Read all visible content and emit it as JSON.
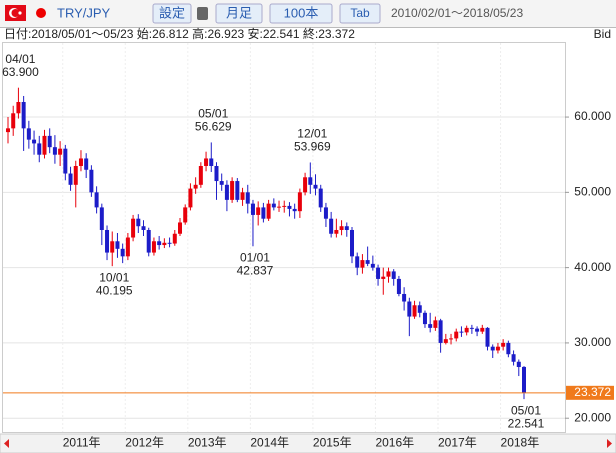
{
  "toolbar": {
    "pair": "TRY/JPY",
    "settings": "設定",
    "period": "月足",
    "count": "100本",
    "tab": "Tab",
    "range": "2010/02/01～2018/05/23"
  },
  "chart_data": {
    "type": "candlestick",
    "info": "日付:2018/05/01～05/23 始:26.812 高:26.923 安:22.541 終:23.372",
    "price_type": "Bid",
    "up_color": "#e8000b",
    "down_color": "#1c1cc8",
    "categories": [
      null,
      null,
      null,
      null,
      null,
      null,
      null,
      null,
      null,
      null,
      null,
      "2011年",
      null,
      null,
      null,
      null,
      null,
      null,
      null,
      null,
      null,
      null,
      null,
      "2012年",
      null,
      null,
      null,
      null,
      null,
      null,
      null,
      null,
      null,
      null,
      null,
      "2013年",
      null,
      null,
      null,
      null,
      null,
      null,
      null,
      null,
      null,
      null,
      null,
      "2014年",
      null,
      null,
      null,
      null,
      null,
      null,
      null,
      null,
      null,
      null,
      null,
      "2015年",
      null,
      null,
      null,
      null,
      null,
      null,
      null,
      null,
      null,
      null,
      null,
      "2016年",
      null,
      null,
      null,
      null,
      null,
      null,
      null,
      null,
      null,
      null,
      null,
      "2017年",
      null,
      null,
      null,
      null,
      null,
      null,
      null,
      null,
      null,
      null,
      null,
      "2018年",
      null,
      null,
      null,
      null
    ],
    "open": [
      58.0,
      58.5,
      60.5,
      62.0,
      58.5,
      57.0,
      56.5,
      55.0,
      57.5,
      56.0,
      55.0,
      55.8,
      52.5,
      51.0,
      53.5,
      54.5,
      53.0,
      50.0,
      48.0,
      45.0,
      42.0,
      43.5,
      42.5,
      41.5,
      44.0,
      46.5,
      45.5,
      45.0,
      42.0,
      43.5,
      43.0,
      43.3,
      43.2,
      44.5,
      46.0,
      48.0,
      50.5,
      51.0,
      53.5,
      54.5,
      53.5,
      51.5,
      51.0,
      49.0,
      51.5,
      49.0,
      50.0,
      48.5,
      47.0,
      48.0,
      46.5,
      48.5,
      48.0,
      48.1,
      48.2,
      47.8,
      47.5,
      50.0,
      52.0,
      51.0,
      50.5,
      48.0,
      46.5,
      44.5,
      45.0,
      45.5,
      45.0,
      41.5,
      40.0,
      41.0,
      40.5,
      40.0,
      38.5,
      38.8,
      39.5,
      38.5,
      36.5,
      35.5,
      33.5,
      35.0,
      34.0,
      32.5,
      32.0,
      33.0,
      30.0,
      30.5,
      30.6,
      31.5,
      31.4,
      32.0,
      31.9,
      31.5,
      32.0,
      29.5,
      29.0,
      29.5,
      30.0,
      28.5,
      27.5,
      26.812
    ],
    "high": [
      60.0,
      61.5,
      63.9,
      62.8,
      59.5,
      58.2,
      57.5,
      58.3,
      58.5,
      57.6,
      56.8,
      56.3,
      53.4,
      54.2,
      55.6,
      55.2,
      53.6,
      50.8,
      48.5,
      45.6,
      44.8,
      44.6,
      43.2,
      44.6,
      47.0,
      47.1,
      46.3,
      45.3,
      44.0,
      44.2,
      43.9,
      44.0,
      45.0,
      46.6,
      48.4,
      51.2,
      52.0,
      54.0,
      55.4,
      56.629,
      54.0,
      52.5,
      51.6,
      52.0,
      51.9,
      50.6,
      51.0,
      49.0,
      48.8,
      48.6,
      49.0,
      49.2,
      48.9,
      48.9,
      48.7,
      48.5,
      50.5,
      52.6,
      53.969,
      52.4,
      51.0,
      48.6,
      47.4,
      46.5,
      46.3,
      46.0,
      45.4,
      42.0,
      41.8,
      42.8,
      41.6,
      40.4,
      40.0,
      40.0,
      39.8,
      38.9,
      37.4,
      36.0,
      35.6,
      35.5,
      34.3,
      34.0,
      33.5,
      33.2,
      31.2,
      31.2,
      31.9,
      32.2,
      32.3,
      32.4,
      32.2,
      32.4,
      32.1,
      29.8,
      30.0,
      30.5,
      30.3,
      29.0,
      27.8,
      26.923
    ],
    "low": [
      56.5,
      57.5,
      59.8,
      55.5,
      55.8,
      55.0,
      54.0,
      54.5,
      55.2,
      53.8,
      53.5,
      51.6,
      50.2,
      48.0,
      52.8,
      51.9,
      49.4,
      47.2,
      43.0,
      41.0,
      40.195,
      41.3,
      40.6,
      41.0,
      43.5,
      44.6,
      44.2,
      41.5,
      41.6,
      42.4,
      42.6,
      42.7,
      42.9,
      44.2,
      45.7,
      47.6,
      49.8,
      50.6,
      52.8,
      52.7,
      49.0,
      50.2,
      47.5,
      48.6,
      48.7,
      48.2,
      47.2,
      42.837,
      45.6,
      46.0,
      46.2,
      47.6,
      47.4,
      47.3,
      46.8,
      46.5,
      46.6,
      49.6,
      49.8,
      49.6,
      47.4,
      45.4,
      44.0,
      44.0,
      44.3,
      44.1,
      40.6,
      39.0,
      39.2,
      40.2,
      39.6,
      37.6,
      36.4,
      38.0,
      37.6,
      36.2,
      34.3,
      30.9,
      33.2,
      33.4,
      32.0,
      31.4,
      31.6,
      28.7,
      29.8,
      29.8,
      30.2,
      30.8,
      31.0,
      31.2,
      30.9,
      31.2,
      29.0,
      28.0,
      28.6,
      29.0,
      28.1,
      27.0,
      25.6,
      22.541
    ],
    "close": [
      58.5,
      60.5,
      62.0,
      58.5,
      57.0,
      56.5,
      55.0,
      57.5,
      56.0,
      55.0,
      55.8,
      52.5,
      51.0,
      53.5,
      54.5,
      53.0,
      50.0,
      48.0,
      45.0,
      42.0,
      43.5,
      42.5,
      41.5,
      44.0,
      46.5,
      45.5,
      45.0,
      42.0,
      43.5,
      43.0,
      43.3,
      43.2,
      44.5,
      46.0,
      48.0,
      50.5,
      51.0,
      53.5,
      54.5,
      53.5,
      51.5,
      51.0,
      49.0,
      51.5,
      49.0,
      50.0,
      48.5,
      47.0,
      48.0,
      46.5,
      48.5,
      48.0,
      48.1,
      48.2,
      47.8,
      47.5,
      50.0,
      52.0,
      51.0,
      50.5,
      48.0,
      46.5,
      44.5,
      45.0,
      45.5,
      45.0,
      41.5,
      40.0,
      41.0,
      40.5,
      40.0,
      38.5,
      38.8,
      39.5,
      38.5,
      36.5,
      35.5,
      33.5,
      35.0,
      34.0,
      32.5,
      32.0,
      33.0,
      30.0,
      30.5,
      30.6,
      31.5,
      31.4,
      32.0,
      31.9,
      31.5,
      32.0,
      29.5,
      29.0,
      29.5,
      30.0,
      28.5,
      27.5,
      26.8,
      23.372
    ],
    "ylim": [
      18.7,
      70.5
    ],
    "yticks": [
      {
        "value": 20,
        "label": "20.000"
      },
      {
        "value": 30,
        "label": "30.000"
      },
      {
        "value": 40,
        "label": "40.000"
      },
      {
        "value": 50,
        "label": "50.000"
      },
      {
        "value": 60,
        "label": "60.000"
      }
    ],
    "last_price": 23.372,
    "last_price_color": "#f07a1c",
    "annotations": [
      {
        "date": "04/01",
        "value": 63.9,
        "label": "63.900"
      },
      {
        "date": "10/01",
        "value": 40.195,
        "label": "40.195"
      },
      {
        "date": "05/01",
        "value": 56.629,
        "label": "56.629"
      },
      {
        "date": "01/01",
        "value": 42.837,
        "label": "42.837"
      },
      {
        "date": "12/01",
        "value": 53.969,
        "label": "53.969"
      },
      {
        "date": "05/01",
        "value": 22.541,
        "label": "22.541"
      }
    ],
    "grid": true
  }
}
